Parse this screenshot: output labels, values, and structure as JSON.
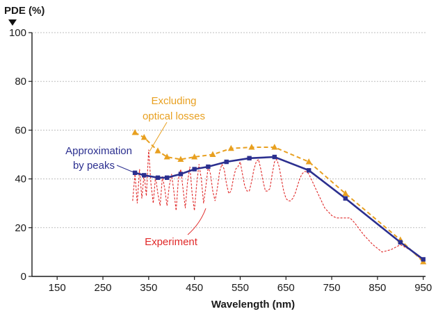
{
  "chart_data": {
    "type": "line",
    "ylabel": "PDE (%)",
    "xlabel": "Wavelength (nm)",
    "xlim": [
      95,
      955
    ],
    "ylim": [
      0,
      100
    ],
    "x_ticks": [
      150,
      250,
      350,
      450,
      550,
      650,
      750,
      850,
      950
    ],
    "y_ticks": [
      0,
      20,
      40,
      60,
      80,
      100
    ],
    "grid": "horizontal dashed",
    "series": [
      {
        "name": "Excluding optical losses",
        "color": "#e8a020",
        "line_style": "dashed",
        "marker": "triangle",
        "x": [
          320,
          340,
          370,
          390,
          420,
          450,
          490,
          530,
          575,
          625,
          700,
          780,
          900,
          950
        ],
        "y": [
          59,
          57,
          51.5,
          49,
          48,
          49,
          50,
          52.5,
          53,
          53,
          47,
          34,
          15,
          6
        ]
      },
      {
        "name": "Approximation by peaks",
        "color": "#2b2f8f",
        "line_style": "solid",
        "marker": "square",
        "x": [
          320,
          340,
          370,
          390,
          420,
          450,
          480,
          520,
          570,
          625,
          700,
          780,
          900,
          950
        ],
        "y": [
          42.5,
          41.5,
          40.5,
          40.5,
          42,
          44,
          45,
          47,
          48.5,
          49,
          43.5,
          32,
          14,
          7
        ]
      },
      {
        "name": "Experiment",
        "color": "#e02828",
        "line_style": "dashed",
        "marker": "none",
        "x": [
          315,
          320,
          325,
          330,
          335,
          340,
          345,
          350,
          355,
          360,
          365,
          370,
          375,
          380,
          385,
          390,
          395,
          400,
          405,
          410,
          415,
          420,
          425,
          430,
          435,
          440,
          445,
          450,
          455,
          460,
          465,
          470,
          475,
          480,
          485,
          490,
          495,
          500,
          505,
          510,
          515,
          520,
          525,
          530,
          535,
          540,
          545,
          550,
          555,
          560,
          565,
          570,
          575,
          580,
          585,
          590,
          595,
          600,
          605,
          610,
          615,
          620,
          625,
          630,
          635,
          640,
          645,
          650,
          655,
          660,
          665,
          670,
          675,
          680,
          685,
          690,
          695,
          700,
          705,
          710,
          715,
          720,
          725,
          730,
          735,
          740,
          745,
          750,
          760,
          770,
          780,
          790,
          800,
          820,
          840,
          860,
          880,
          900,
          920,
          940,
          950
        ],
        "y": [
          31,
          42,
          30,
          44,
          32,
          42,
          33,
          52,
          38,
          30,
          41,
          34,
          29,
          41,
          36,
          29,
          37,
          42,
          35,
          27,
          40,
          44,
          36,
          28,
          39,
          45,
          34,
          27,
          38,
          46,
          40,
          30,
          37,
          45,
          42,
          35,
          31,
          36,
          43,
          46,
          44,
          38,
          34,
          35,
          40,
          44,
          45,
          47,
          42,
          37,
          35,
          35,
          39,
          44,
          47,
          48,
          44,
          39,
          35,
          35,
          36,
          42,
          47,
          48,
          45,
          40,
          35,
          32,
          31,
          31,
          32,
          34,
          37,
          40,
          42,
          43,
          43,
          42,
          40,
          38,
          36,
          34,
          32,
          30,
          28,
          27,
          26,
          25,
          24,
          24,
          24,
          24,
          22,
          17,
          13,
          10,
          11,
          13,
          11,
          8,
          6
        ]
      }
    ],
    "annotations": [
      {
        "text": "Excluding",
        "color": "#e8a020"
      },
      {
        "text": "optical losses",
        "color": "#e8a020"
      },
      {
        "text": "Approximation",
        "color": "#2b2f8f"
      },
      {
        "text": "by peaks",
        "color": "#2b2f8f"
      },
      {
        "text": "Experiment",
        "color": "#e02828"
      }
    ]
  }
}
